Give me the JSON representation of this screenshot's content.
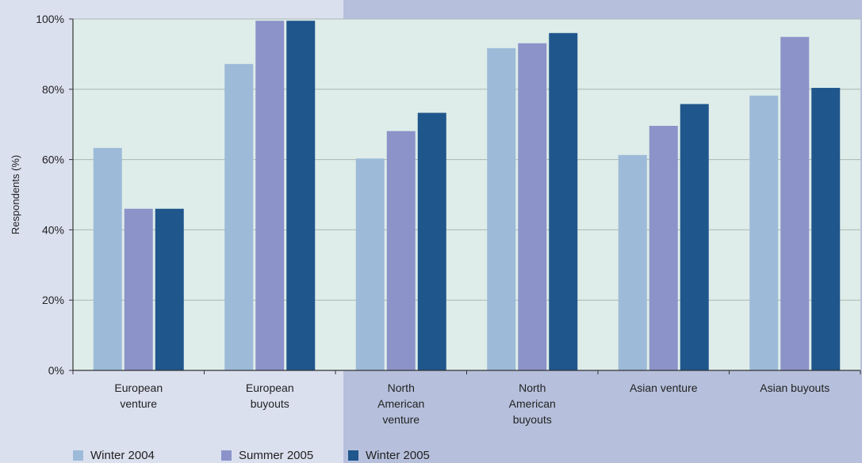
{
  "chart_data": {
    "type": "bar",
    "categories": [
      [
        "European",
        "venture"
      ],
      [
        "European",
        "buyouts"
      ],
      [
        "North",
        "American",
        "venture"
      ],
      [
        "North",
        "American",
        "buyouts"
      ],
      [
        "Asian venture"
      ],
      [
        "Asian buyouts"
      ]
    ],
    "series": [
      {
        "name": "Winter 2004",
        "color": "#9dbad9",
        "values": [
          63.3,
          87.2,
          60.3,
          91.7,
          61.3,
          78.2
        ]
      },
      {
        "name": "Summer 2005",
        "color": "#8b93c9",
        "values": [
          46.0,
          99.5,
          68.1,
          93.1,
          69.6,
          94.9
        ]
      },
      {
        "name": "Winter 2005",
        "color": "#1f568c",
        "values": [
          46.0,
          99.5,
          73.3,
          96.0,
          75.8,
          80.4
        ]
      }
    ],
    "ylabel": "Respondents (%)",
    "ylim": [
      0,
      100
    ],
    "yticks": [
      "0%",
      "20%",
      "40%",
      "60%",
      "80%",
      "100%"
    ],
    "grid": true,
    "legend_position": "bottom",
    "plot_background": "#deede9"
  }
}
